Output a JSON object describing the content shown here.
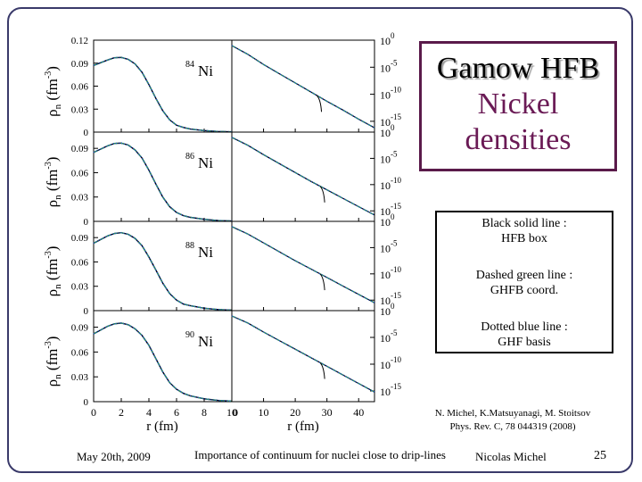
{
  "slide": {
    "title_lines": [
      "Gamow HFB",
      "Nickel",
      "densities"
    ],
    "legend_lines": {
      "black": [
        "Black solid line :",
        "HFB box"
      ],
      "green": [
        "Dashed green line :",
        "GHFB coord."
      ],
      "blue": [
        "Dotted blue line :",
        "GHF basis"
      ]
    },
    "citation": {
      "line1": "N. Michel, K.Matsuyanagi, M. Stoitsov",
      "line2": "Phys. Rev. C, 78  044319 (2008)"
    },
    "footer": {
      "date": "May 20th, 2009",
      "title": "Importance of continuum for nuclei close to drip-lines",
      "author": "Nicolas Michel",
      "page": "25"
    },
    "colors": {
      "black": "#000000",
      "green": "#2e8b57",
      "blue": "#1f4fd0",
      "frame": "#3a3a6a",
      "title_border": "#5a1a4a"
    }
  },
  "chart_data": {
    "type": "line",
    "ylabel_parts": {
      "rho": "ρ",
      "sub": "n",
      "unit": "(fm",
      "exp": "-3",
      "close": ")"
    },
    "xlabel": "r (fm)",
    "left_panel": {
      "x_ticks": [
        0,
        2,
        4,
        6,
        8,
        10
      ],
      "xlim": [
        0,
        10
      ],
      "y_ticks": [
        0,
        0.03,
        0.06,
        0.09,
        0.12
      ],
      "y_tick_labels": [
        "0",
        "0.03",
        "0.06",
        "0.09",
        "0.12"
      ],
      "ylim": [
        0,
        0.12
      ],
      "ylim_other_rows": [
        0,
        0.11
      ]
    },
    "right_panel": {
      "x_ticks": [
        0,
        10,
        20,
        30,
        40
      ],
      "xlim": [
        0,
        45
      ],
      "y_scale": "log",
      "y_tick_exponents": [
        0,
        -5,
        -10,
        -15
      ],
      "ylim_exponent": [
        -17,
        0
      ]
    },
    "rows": [
      {
        "nucleus": "Ni",
        "mass_number": "84",
        "left": {
          "r": [
            0,
            1,
            1.5,
            2,
            2.5,
            3,
            3.5,
            4,
            4.5,
            5,
            5.5,
            6,
            6.5,
            7,
            8,
            9,
            10
          ],
          "rho": [
            0.087,
            0.094,
            0.097,
            0.0975,
            0.095,
            0.089,
            0.078,
            0.062,
            0.044,
            0.028,
            0.016,
            0.009,
            0.006,
            0.004,
            0.002,
            0.0008,
            0.0003
          ]
        },
        "right": {
          "r": [
            0,
            5,
            10,
            15,
            20,
            25,
            30,
            35,
            40,
            45
          ],
          "log10_rho": [
            -1.0,
            -2.6,
            -4.5,
            -6.2,
            -7.9,
            -9.6,
            -11.3,
            -12.9,
            -14.6,
            -16.2
          ]
        },
        "node_r": 28
      },
      {
        "nucleus": "Ni",
        "mass_number": "86",
        "left": {
          "r": [
            0,
            1,
            1.5,
            2,
            2.5,
            3,
            3.5,
            4,
            4.5,
            5,
            5.5,
            6,
            6.5,
            7,
            8,
            9,
            10
          ],
          "rho": [
            0.085,
            0.093,
            0.096,
            0.0965,
            0.094,
            0.088,
            0.078,
            0.063,
            0.046,
            0.03,
            0.018,
            0.011,
            0.007,
            0.005,
            0.0025,
            0.001,
            0.0004
          ]
        },
        "right": {
          "r": [
            0,
            5,
            10,
            15,
            20,
            25,
            30,
            35,
            40,
            45
          ],
          "log10_rho": [
            -1.0,
            -2.5,
            -4.3,
            -6.0,
            -7.7,
            -9.4,
            -11.0,
            -12.6,
            -14.2,
            -15.8
          ]
        },
        "node_r": 29
      },
      {
        "nucleus": "Ni",
        "mass_number": "88",
        "left": {
          "r": [
            0,
            1,
            1.5,
            2,
            2.5,
            3,
            3.5,
            4,
            4.5,
            5,
            5.5,
            6,
            6.5,
            7,
            8,
            9,
            10
          ],
          "rho": [
            0.083,
            0.092,
            0.095,
            0.096,
            0.094,
            0.089,
            0.08,
            0.066,
            0.05,
            0.034,
            0.021,
            0.013,
            0.008,
            0.006,
            0.003,
            0.0013,
            0.0005
          ]
        },
        "right": {
          "r": [
            0,
            5,
            10,
            15,
            20,
            25,
            30,
            35,
            40,
            45
          ],
          "log10_rho": [
            -1.0,
            -2.4,
            -4.1,
            -5.8,
            -7.5,
            -9.1,
            -10.7,
            -12.3,
            -13.9,
            -15.5
          ]
        },
        "node_r": 29
      },
      {
        "nucleus": "Ni",
        "mass_number": "90",
        "left": {
          "r": [
            0,
            1,
            1.5,
            2,
            2.5,
            3,
            3.5,
            4,
            4.5,
            5,
            5.5,
            6,
            6.5,
            7,
            8,
            9,
            10
          ],
          "rho": [
            0.082,
            0.091,
            0.094,
            0.095,
            0.093,
            0.088,
            0.08,
            0.068,
            0.052,
            0.036,
            0.023,
            0.015,
            0.01,
            0.007,
            0.0035,
            0.0015,
            0.0006
          ]
        },
        "right": {
          "r": [
            0,
            5,
            10,
            15,
            20,
            25,
            30,
            35,
            40,
            45
          ],
          "log10_rho": [
            -1.0,
            -2.3,
            -4.0,
            -5.6,
            -7.2,
            -8.8,
            -10.4,
            -12.0,
            -13.6,
            -15.2
          ]
        },
        "node_r": 29
      }
    ]
  }
}
